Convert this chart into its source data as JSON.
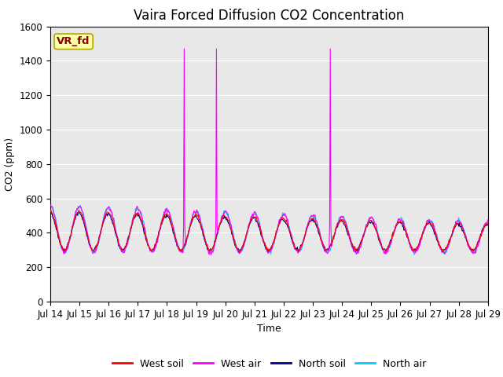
{
  "title": "Vaira Forced Diffusion CO2 Concentration",
  "xlabel": "Time",
  "ylabel": "CO2 (ppm)",
  "ylim": [
    0,
    1600
  ],
  "yticks": [
    0,
    200,
    400,
    600,
    800,
    1000,
    1200,
    1400,
    1600
  ],
  "n_days": 15,
  "samples_per_day": 48,
  "west_soil_color": "#ff0000",
  "west_air_color": "#ff00ff",
  "north_soil_color": "#00008b",
  "north_air_color": "#00ccff",
  "legend_labels": [
    "West soil",
    "West air",
    "North soil",
    "North air"
  ],
  "vr_fd_label": "VR_fd",
  "plot_bg_color": "#e8e8e8",
  "fig_bg_color": "#ffffff",
  "spike_days": [
    4.6,
    5.7,
    9.6
  ],
  "spike_value": 1470,
  "title_fontsize": 12,
  "label_fontsize": 9,
  "tick_fontsize": 8.5,
  "xtick_labels": [
    "Jul 14",
    "Jul 15",
    "Jul 16",
    "Jul 17",
    "Jul 18",
    "Jul 19",
    "Jul 20",
    "Jul 21",
    "Jul 22",
    "Jul 23",
    "Jul 24",
    "Jul 25",
    "Jul 26",
    "Jul 27",
    "Jul 28",
    "Jul 29"
  ]
}
